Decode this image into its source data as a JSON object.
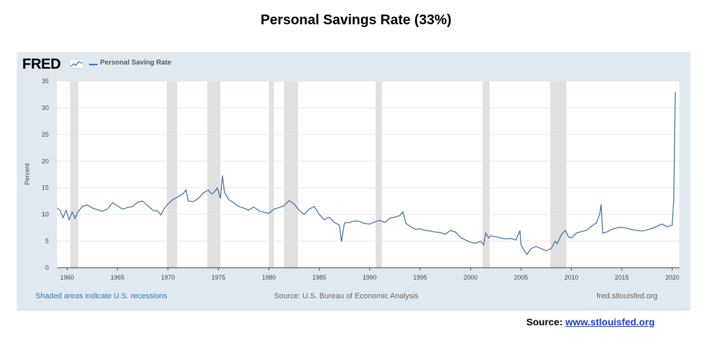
{
  "slide": {
    "title": "Personal Savings Rate (33%)",
    "source_label": "Source: ",
    "source_link": "www.stlouisfed.org"
  },
  "panel": {
    "logo_text": "FRED",
    "legend_label": "Personal Saving Rate",
    "recession_note": "Shaded areas indicate U.S. recessions",
    "source_note": "Source: U.S. Bureau of Economic Analysis",
    "site": "fred.stlouisfed.org"
  },
  "colors": {
    "line": "#4572a7",
    "panel_bg": "#e1e9f0",
    "recession": "#e0e0e0"
  },
  "chart_data": {
    "type": "line",
    "title": "",
    "xlabel": "",
    "ylabel": "Percent",
    "xlim": [
      1959.0,
      2020.7
    ],
    "ylim": [
      0,
      35
    ],
    "yticks": [
      "0",
      "5",
      "10",
      "15",
      "20",
      "25",
      "30",
      "35"
    ],
    "xticks": [
      "1960",
      "1965",
      "1970",
      "1975",
      "1980",
      "1985",
      "1990",
      "1995",
      "2000",
      "2005",
      "2010",
      "2015",
      "2020"
    ],
    "grid": true,
    "legend_position": "top-left",
    "recessions": [
      [
        1960.3,
        1961.1
      ],
      [
        1969.9,
        1970.9
      ],
      [
        1973.9,
        1975.2
      ],
      [
        1980.0,
        1980.5
      ],
      [
        1981.5,
        1982.9
      ],
      [
        1990.6,
        1991.2
      ],
      [
        2001.2,
        2001.9
      ],
      [
        2007.9,
        2009.5
      ]
    ],
    "series": [
      {
        "name": "Personal Saving Rate",
        "points": [
          [
            1959.0,
            11.2
          ],
          [
            1959.3,
            10.8
          ],
          [
            1959.6,
            9.4
          ],
          [
            1959.9,
            10.8
          ],
          [
            1960.2,
            9.0
          ],
          [
            1960.5,
            10.5
          ],
          [
            1960.8,
            9.2
          ],
          [
            1961.0,
            10.3
          ],
          [
            1961.5,
            11.5
          ],
          [
            1962.0,
            11.8
          ],
          [
            1962.5,
            11.2
          ],
          [
            1963.0,
            10.9
          ],
          [
            1963.5,
            10.6
          ],
          [
            1964.0,
            11.0
          ],
          [
            1964.5,
            12.2
          ],
          [
            1965.0,
            11.6
          ],
          [
            1965.5,
            11.0
          ],
          [
            1966.0,
            11.3
          ],
          [
            1966.5,
            11.5
          ],
          [
            1967.0,
            12.3
          ],
          [
            1967.5,
            12.5
          ],
          [
            1968.0,
            11.6
          ],
          [
            1968.5,
            10.8
          ],
          [
            1969.0,
            10.6
          ],
          [
            1969.3,
            9.9
          ],
          [
            1969.6,
            11.0
          ],
          [
            1970.0,
            12.0
          ],
          [
            1970.5,
            12.8
          ],
          [
            1971.0,
            13.3
          ],
          [
            1971.5,
            13.9
          ],
          [
            1971.8,
            14.6
          ],
          [
            1972.0,
            12.5
          ],
          [
            1972.5,
            12.4
          ],
          [
            1973.0,
            13.0
          ],
          [
            1973.5,
            14.0
          ],
          [
            1974.0,
            14.6
          ],
          [
            1974.3,
            13.8
          ],
          [
            1974.6,
            14.2
          ],
          [
            1974.9,
            15.0
          ],
          [
            1975.2,
            13.0
          ],
          [
            1975.4,
            17.3
          ],
          [
            1975.6,
            14.2
          ],
          [
            1976.0,
            12.8
          ],
          [
            1976.5,
            12.2
          ],
          [
            1977.0,
            11.5
          ],
          [
            1977.5,
            11.2
          ],
          [
            1978.0,
            10.8
          ],
          [
            1978.5,
            11.4
          ],
          [
            1979.0,
            10.7
          ],
          [
            1979.5,
            10.4
          ],
          [
            1980.0,
            10.2
          ],
          [
            1980.5,
            11.0
          ],
          [
            1981.0,
            11.3
          ],
          [
            1981.5,
            11.6
          ],
          [
            1982.0,
            12.6
          ],
          [
            1982.5,
            12.0
          ],
          [
            1983.0,
            10.8
          ],
          [
            1983.5,
            10.0
          ],
          [
            1984.0,
            11.0
          ],
          [
            1984.5,
            11.5
          ],
          [
            1985.0,
            10.0
          ],
          [
            1985.5,
            9.0
          ],
          [
            1986.0,
            9.5
          ],
          [
            1986.5,
            8.5
          ],
          [
            1987.0,
            8.0
          ],
          [
            1987.2,
            4.9
          ],
          [
            1987.5,
            8.4
          ],
          [
            1988.0,
            8.5
          ],
          [
            1988.5,
            8.8
          ],
          [
            1989.0,
            8.7
          ],
          [
            1989.5,
            8.3
          ],
          [
            1990.0,
            8.2
          ],
          [
            1990.5,
            8.6
          ],
          [
            1991.0,
            8.9
          ],
          [
            1991.5,
            8.5
          ],
          [
            1992.0,
            9.3
          ],
          [
            1992.5,
            9.5
          ],
          [
            1993.0,
            9.8
          ],
          [
            1993.3,
            10.5
          ],
          [
            1993.6,
            8.3
          ],
          [
            1994.0,
            7.8
          ],
          [
            1994.5,
            7.2
          ],
          [
            1995.0,
            7.3
          ],
          [
            1995.5,
            7.0
          ],
          [
            1996.0,
            6.9
          ],
          [
            1996.5,
            6.7
          ],
          [
            1997.0,
            6.6
          ],
          [
            1997.5,
            6.3
          ],
          [
            1998.0,
            7.0
          ],
          [
            1998.5,
            6.7
          ],
          [
            1999.0,
            5.7
          ],
          [
            1999.5,
            5.2
          ],
          [
            2000.0,
            4.8
          ],
          [
            2000.5,
            4.6
          ],
          [
            2001.0,
            5.0
          ],
          [
            2001.3,
            4.3
          ],
          [
            2001.5,
            6.5
          ],
          [
            2001.8,
            5.6
          ],
          [
            2002.0,
            6.0
          ],
          [
            2002.5,
            5.8
          ],
          [
            2003.0,
            5.6
          ],
          [
            2003.5,
            5.4
          ],
          [
            2004.0,
            5.5
          ],
          [
            2004.5,
            5.2
          ],
          [
            2004.9,
            7.0
          ],
          [
            2005.0,
            4.3
          ],
          [
            2005.3,
            3.3
          ],
          [
            2005.6,
            2.5
          ],
          [
            2006.0,
            3.6
          ],
          [
            2006.5,
            4.0
          ],
          [
            2007.0,
            3.6
          ],
          [
            2007.5,
            3.2
          ],
          [
            2008.0,
            3.6
          ],
          [
            2008.4,
            5.0
          ],
          [
            2008.6,
            4.5
          ],
          [
            2009.0,
            6.2
          ],
          [
            2009.4,
            7.0
          ],
          [
            2009.7,
            5.8
          ],
          [
            2010.0,
            5.6
          ],
          [
            2010.5,
            6.5
          ],
          [
            2011.0,
            6.8
          ],
          [
            2011.5,
            7.0
          ],
          [
            2012.0,
            7.8
          ],
          [
            2012.5,
            8.5
          ],
          [
            2012.8,
            10.0
          ],
          [
            2012.95,
            11.9
          ],
          [
            2013.1,
            6.5
          ],
          [
            2013.5,
            6.7
          ],
          [
            2014.0,
            7.2
          ],
          [
            2014.5,
            7.5
          ],
          [
            2015.0,
            7.6
          ],
          [
            2015.5,
            7.4
          ],
          [
            2016.0,
            7.2
          ],
          [
            2016.5,
            7.0
          ],
          [
            2017.0,
            6.9
          ],
          [
            2017.5,
            7.1
          ],
          [
            2018.0,
            7.4
          ],
          [
            2018.5,
            7.8
          ],
          [
            2019.0,
            8.2
          ],
          [
            2019.5,
            7.7
          ],
          [
            2020.0,
            8.0
          ],
          [
            2020.15,
            12.8
          ],
          [
            2020.3,
            33.0
          ]
        ]
      }
    ]
  }
}
